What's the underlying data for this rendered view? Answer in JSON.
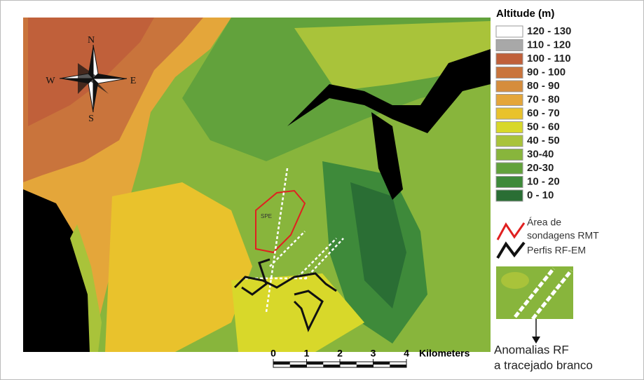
{
  "map": {
    "compass": {
      "n": "N",
      "s": "S",
      "e": "E",
      "w": "W"
    },
    "area_label": "SPE",
    "scale": {
      "ticks": [
        0,
        1,
        2,
        3,
        4
      ],
      "unit": "Kilometers"
    },
    "legend": {
      "title": "Altitude (m)",
      "items": [
        {
          "label": "120 - 130",
          "color": "#ffffff"
        },
        {
          "label": "110 - 120",
          "color": "#a8a8a8"
        },
        {
          "label": "100 - 110",
          "color": "#c0603a"
        },
        {
          "label": "90 - 100",
          "color": "#c9743c"
        },
        {
          "label": "80 - 90",
          "color": "#d68d3c"
        },
        {
          "label": "70 - 80",
          "color": "#e4a63a"
        },
        {
          "label": "60 - 70",
          "color": "#e9c22c"
        },
        {
          "label": "50 - 60",
          "color": "#d8d82a"
        },
        {
          "label": "40 - 50",
          "color": "#a9c33a"
        },
        {
          "label": "30-40",
          "color": "#88b53c"
        },
        {
          "label": "20-30",
          "color": "#62a23c"
        },
        {
          "label": "10 - 20",
          "color": "#3e8a3a"
        },
        {
          "label": "0 - 10",
          "color": "#2a6e34"
        }
      ],
      "area": {
        "lines": [
          "Área de",
          "sondagens RMT"
        ]
      },
      "profiles": "Perfis RF-EM",
      "anomalies": {
        "lines": [
          "Anomalias RF",
          "a tracejado branco"
        ]
      }
    }
  }
}
